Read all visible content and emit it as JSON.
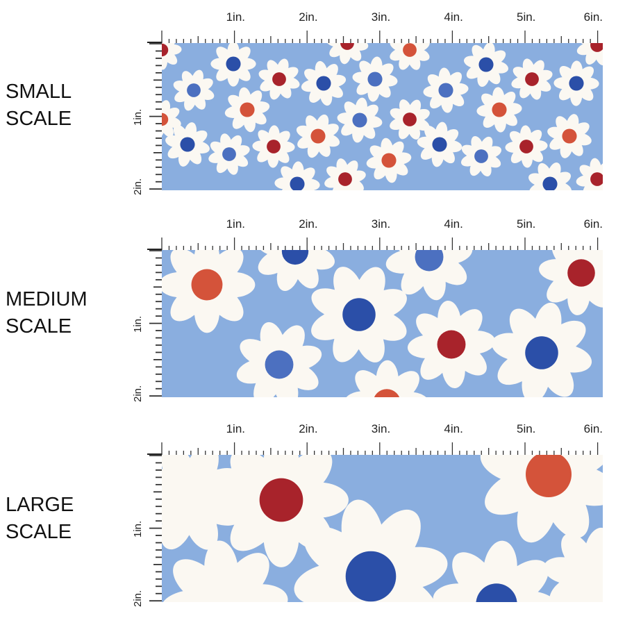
{
  "sections": [
    {
      "label_line1": "SMALL",
      "label_line2": "SCALE"
    },
    {
      "label_line1": "MEDIUM",
      "label_line2": "SCALE"
    },
    {
      "label_line1": "LARGE",
      "label_line2": "SCALE"
    }
  ],
  "ruler": {
    "horizontal_labels": [
      "1in.",
      "2in.",
      "3in.",
      "4in.",
      "5in.",
      "6in."
    ],
    "vertical_labels": [
      "1in.",
      "2in."
    ]
  },
  "colors": {
    "background": "#8AAEDF",
    "petal": "#FBF8F2",
    "navy": "#2B4FA8",
    "blue": "#4C70C0",
    "red": "#A8232B",
    "orange": "#D4533A"
  }
}
